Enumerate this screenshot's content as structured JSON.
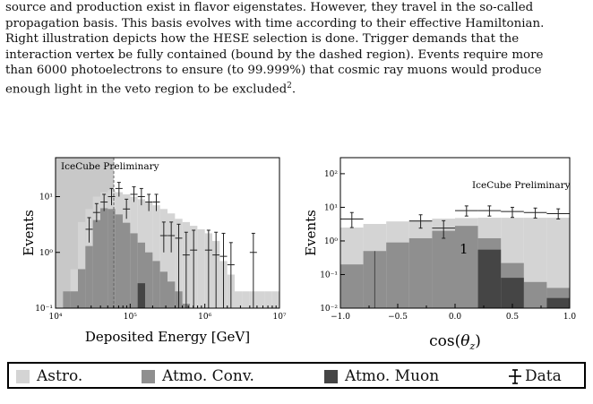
{
  "paragraph": {
    "lines": [
      "source and production exist in flavor eigenstates. However, they travel in the so-called",
      "propagation basis. This basis evolves with time according to their effective Hamiltonian.",
      "Right illustration depicts how the HESE selection is done.  Trigger demands that the",
      "interaction vertex be fully contained (bound by the dashed region). Events require more",
      "than 6000 photoelectrons to ensure (to 99.999%) that cosmic ray muons would produce",
      "enough light in the veto region to be excluded"
    ],
    "footnote_mark": "2",
    "end_period": "."
  },
  "colors": {
    "astro": "#d4d4d4",
    "conv": "#8f8f8f",
    "muon": "#454545",
    "data": "#222222",
    "shade": "#c8c8c8"
  },
  "chart_data": [
    {
      "type": "bar",
      "annotation": "IceCube Preliminary",
      "xlabel": "Deposited Energy [GeV]",
      "ylabel": "Events",
      "xscale": "log",
      "yscale": "log",
      "xlim": [
        10000,
        10000000
      ],
      "ylim": [
        0.1,
        50
      ],
      "xticks": [
        "10⁴",
        "10⁵",
        "10⁶",
        "10⁷"
      ],
      "yticks": [
        "10⁻¹",
        "10⁰",
        "10¹"
      ],
      "bin_edges_log10": [
        4.1,
        4.2,
        4.3,
        4.4,
        4.5,
        4.6,
        4.7,
        4.8,
        4.9,
        5.0,
        5.1,
        5.2,
        5.3,
        5.4,
        5.5,
        5.6,
        5.7,
        5.8,
        5.9,
        6.0,
        6.1,
        6.2,
        6.3,
        6.4,
        6.5,
        6.6,
        6.7,
        6.8,
        6.9,
        7.0
      ],
      "series": [
        {
          "name": "Astro.",
          "values": [
            0.2,
            0.5,
            3.5,
            6,
            10,
            12,
            13,
            12,
            11,
            10,
            9,
            8,
            7,
            6,
            5,
            4,
            3.5,
            3,
            2.6,
            2.2,
            1.6,
            0.7,
            0.4,
            0.2,
            0.2,
            0.2,
            0.2,
            0.2,
            0.2
          ]
        },
        {
          "name": "Atmo. Conv.",
          "values": [
            0.2,
            0.2,
            0.5,
            1.3,
            3.8,
            6.2,
            6,
            4.8,
            3.4,
            2.2,
            1.5,
            1,
            0.7,
            0.45,
            0.3,
            0.2,
            0.12,
            0.1,
            0.1,
            0.1,
            0.1,
            0.1,
            0.1,
            0.1,
            0.1,
            0.1,
            0.1,
            0.1,
            0.1
          ]
        },
        {
          "name": "Atmo. Muon",
          "values": [
            0.1,
            0.1,
            0.1,
            0.1,
            0.1,
            0.1,
            0.1,
            0.1,
            0.1,
            0.1,
            0.28,
            0.1,
            0.1,
            0.1,
            0.1,
            0.1,
            0.1,
            0.1,
            0.1,
            0.1,
            0.1,
            0.1,
            0.1,
            0.1,
            0.1,
            0.1,
            0.1,
            0.1,
            0.1
          ]
        }
      ],
      "data_points": [
        {
          "x": 4.45,
          "y": 2.6,
          "ylo": 1.5,
          "yhi": 4.2
        },
        {
          "x": 4.55,
          "y": 5.2,
          "ylo": 3.5,
          "yhi": 7.5
        },
        {
          "x": 4.65,
          "y": 8,
          "ylo": 5.5,
          "yhi": 11
        },
        {
          "x": 4.75,
          "y": 10,
          "ylo": 7,
          "yhi": 14
        },
        {
          "x": 4.85,
          "y": 14,
          "ylo": 10,
          "yhi": 18
        },
        {
          "x": 4.95,
          "y": 6,
          "ylo": 4,
          "yhi": 9
        },
        {
          "x": 5.05,
          "y": 11,
          "ylo": 8,
          "yhi": 15
        },
        {
          "x": 5.15,
          "y": 10,
          "ylo": 7,
          "yhi": 14
        },
        {
          "x": 5.25,
          "y": 8,
          "ylo": 5.5,
          "yhi": 11
        },
        {
          "x": 5.35,
          "y": 8,
          "ylo": 5.5,
          "yhi": 11
        },
        {
          "x": 5.45,
          "y": 2,
          "ylo": 1,
          "yhi": 3.5
        },
        {
          "x": 5.55,
          "y": 2,
          "ylo": 1,
          "yhi": 3.5
        },
        {
          "x": 5.65,
          "y": 1.8,
          "ylo": 0.1,
          "yhi": 3.2
        },
        {
          "x": 5.75,
          "y": 0.9,
          "ylo": 0.1,
          "yhi": 2.3
        },
        {
          "x": 5.85,
          "y": 1.1,
          "ylo": 0.1,
          "yhi": 2.5
        },
        {
          "x": 6.05,
          "y": 1.1,
          "ylo": 0.1,
          "yhi": 2.5
        },
        {
          "x": 6.15,
          "y": 0.9,
          "ylo": 0.1,
          "yhi": 2.3
        },
        {
          "x": 6.25,
          "y": 0.85,
          "ylo": 0.1,
          "yhi": 2.2
        },
        {
          "x": 6.35,
          "y": 0.6,
          "ylo": 0.1,
          "yhi": 1.5
        },
        {
          "x": 6.65,
          "y": 1.0,
          "ylo": 0.1,
          "yhi": 2.2
        }
      ]
    },
    {
      "type": "bar",
      "annotation": "IceCube Preliminary",
      "xlabel": "cos(θz)",
      "ylabel": "Events",
      "yscale": "log",
      "xlim": [
        -1.0,
        1.0
      ],
      "ylim": [
        0.01,
        300
      ],
      "xticks": [
        "−1.0",
        "−0.5",
        "0.0",
        "0.5",
        "1.0"
      ],
      "yticks": [
        "10⁻²",
        "10⁻¹",
        "10⁰",
        "10¹",
        "10²"
      ],
      "bin_edges": [
        -1.0,
        -0.8,
        -0.6,
        -0.4,
        -0.2,
        0.0,
        0.2,
        0.4,
        0.6,
        0.8,
        1.0
      ],
      "series": [
        {
          "name": "Astro.",
          "values": [
            2.5,
            3.2,
            3.8,
            4.2,
            4.6,
            4.8,
            4.9,
            4.9,
            4.9,
            4.9
          ]
        },
        {
          "name": "Atmo. Conv.",
          "values": [
            0.2,
            0.5,
            0.9,
            1.2,
            2.0,
            2.8,
            1.2,
            0.22,
            0.06,
            0.04
          ]
        },
        {
          "name": "Atmo. Muon",
          "values": [
            0.01,
            0.01,
            0.01,
            0.01,
            0.01,
            0.01,
            0.55,
            0.08,
            0.01,
            0.02
          ]
        }
      ],
      "data_points": [
        {
          "x": -0.9,
          "y": 4.5,
          "ylo": 2.5,
          "yhi": 7.0
        },
        {
          "x": -0.3,
          "y": 3.9,
          "ylo": 2.4,
          "yhi": 6.0
        },
        {
          "x": -0.1,
          "y": 2.4,
          "ylo": 1.2,
          "yhi": 4.0
        },
        {
          "x": 0.1,
          "y": 8.0,
          "ylo": 5.5,
          "yhi": 11.0
        },
        {
          "x": 0.3,
          "y": 8.0,
          "ylo": 5.5,
          "yhi": 11.0
        },
        {
          "x": 0.5,
          "y": 7.5,
          "ylo": 5.0,
          "yhi": 10.0
        },
        {
          "x": 0.7,
          "y": 7.0,
          "ylo": 4.8,
          "yhi": 9.5
        },
        {
          "x": 0.9,
          "y": 6.5,
          "ylo": 4.5,
          "yhi": 9.0
        }
      ],
      "mark_label": "1"
    }
  ],
  "legend": {
    "items": [
      {
        "label": "Astro."
      },
      {
        "label": "Atmo. Conv."
      },
      {
        "label": "Atmo. Muon"
      },
      {
        "label": "Data"
      }
    ]
  }
}
